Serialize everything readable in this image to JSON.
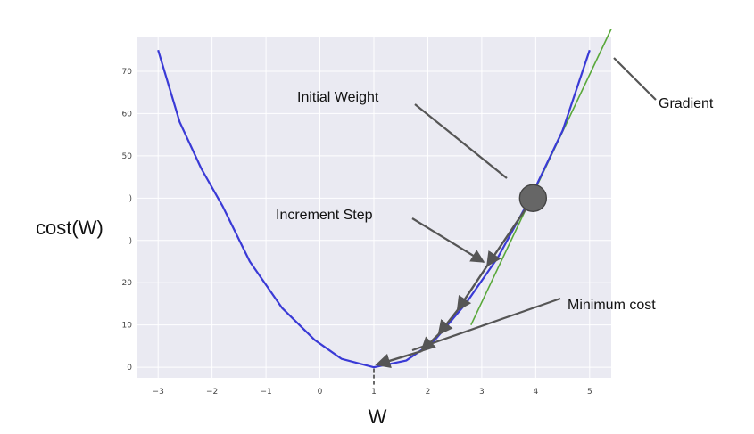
{
  "chart_data": {
    "type": "line",
    "xlabel": "W",
    "ylabel": "cost(W)",
    "xlim": [
      -3.4,
      5.4
    ],
    "ylim": [
      -2.5,
      78
    ],
    "x_ticks": [
      -3,
      -2,
      -1,
      0,
      1,
      2,
      3,
      4,
      5
    ],
    "y_ticks": [
      0,
      10,
      20,
      30,
      40,
      50,
      60,
      70
    ],
    "y_tick_labels": [
      "0",
      "10",
      "20",
      ")",
      ")",
      "50",
      "60",
      "70"
    ],
    "grid": true,
    "series": [
      {
        "color": "#3a3ad6",
        "x": [
          -3,
          -2.6,
          -2.2,
          -1.8,
          -1.3,
          -0.7,
          -0.1,
          0.4,
          1,
          1.6,
          2.1,
          2.7,
          3.3,
          3.9,
          4.5,
          5
        ],
        "y": [
          75,
          58,
          47,
          38,
          25,
          14,
          6.5,
          2,
          0,
          1.6,
          6,
          15,
          26,
          40,
          56,
          75
        ]
      }
    ],
    "gradient_line": {
      "color": "#59a83a",
      "x": [
        2.8,
        5.4
      ],
      "y": [
        10,
        80
      ]
    },
    "initial_weight_point": {
      "x": 3.95,
      "y": 40,
      "color": "#666666"
    },
    "increment_steps": [
      {
        "x1": 3.95,
        "y1": 40,
        "x2": 3.1,
        "y2": 24
      },
      {
        "x1": 3.1,
        "y1": 24,
        "x2": 2.55,
        "y2": 13.5
      },
      {
        "x1": 2.55,
        "y1": 13.5,
        "x2": 2.2,
        "y2": 7.8
      },
      {
        "x1": 2.2,
        "y1": 7.8,
        "x2": 1.88,
        "y2": 3.8
      },
      {
        "x1": 1.88,
        "y1": 3.8,
        "x2": 1.05,
        "y2": 0.6
      }
    ],
    "min_marker": {
      "x": 1,
      "y": -2
    }
  },
  "annotations": {
    "initial_weight": "Initial Weight",
    "increment_step": "Increment Step",
    "minimum_cost": "Minimum cost",
    "gradient": "Gradient"
  }
}
